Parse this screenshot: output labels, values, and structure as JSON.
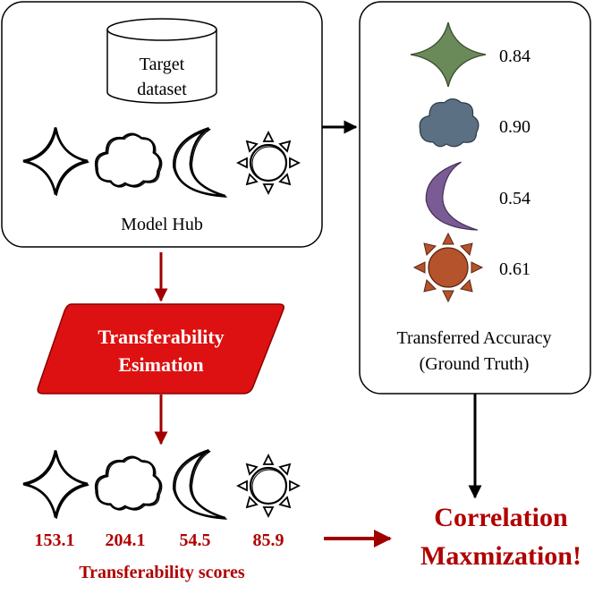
{
  "target_dataset": {
    "line1": "Target",
    "line2": "dataset"
  },
  "model_hub_label": "Model Hub",
  "estimation": {
    "line1": "Transferability",
    "line2": "Esimation"
  },
  "accuracy_box": {
    "label_line1": "Transferred Accuracy",
    "label_line2": "(Ground Truth)",
    "values": [
      "0.84",
      "0.90",
      "0.54",
      "0.61"
    ]
  },
  "scores": [
    "153.1",
    "204.1",
    "54.5",
    "85.9"
  ],
  "scores_label": "Transferability scores",
  "result": {
    "line1": "Correlation",
    "line2": "Maxmization!"
  },
  "colors": {
    "accent_red": "#b00000",
    "estimation_fill": "#dd1111",
    "star": "#6b8a5a",
    "cloud": "#5c7083",
    "moon": "#7a5b93",
    "sun": "#b5532c"
  },
  "icons": [
    "four-point-star-icon",
    "cloud-icon",
    "crescent-moon-icon",
    "sun-icon"
  ]
}
